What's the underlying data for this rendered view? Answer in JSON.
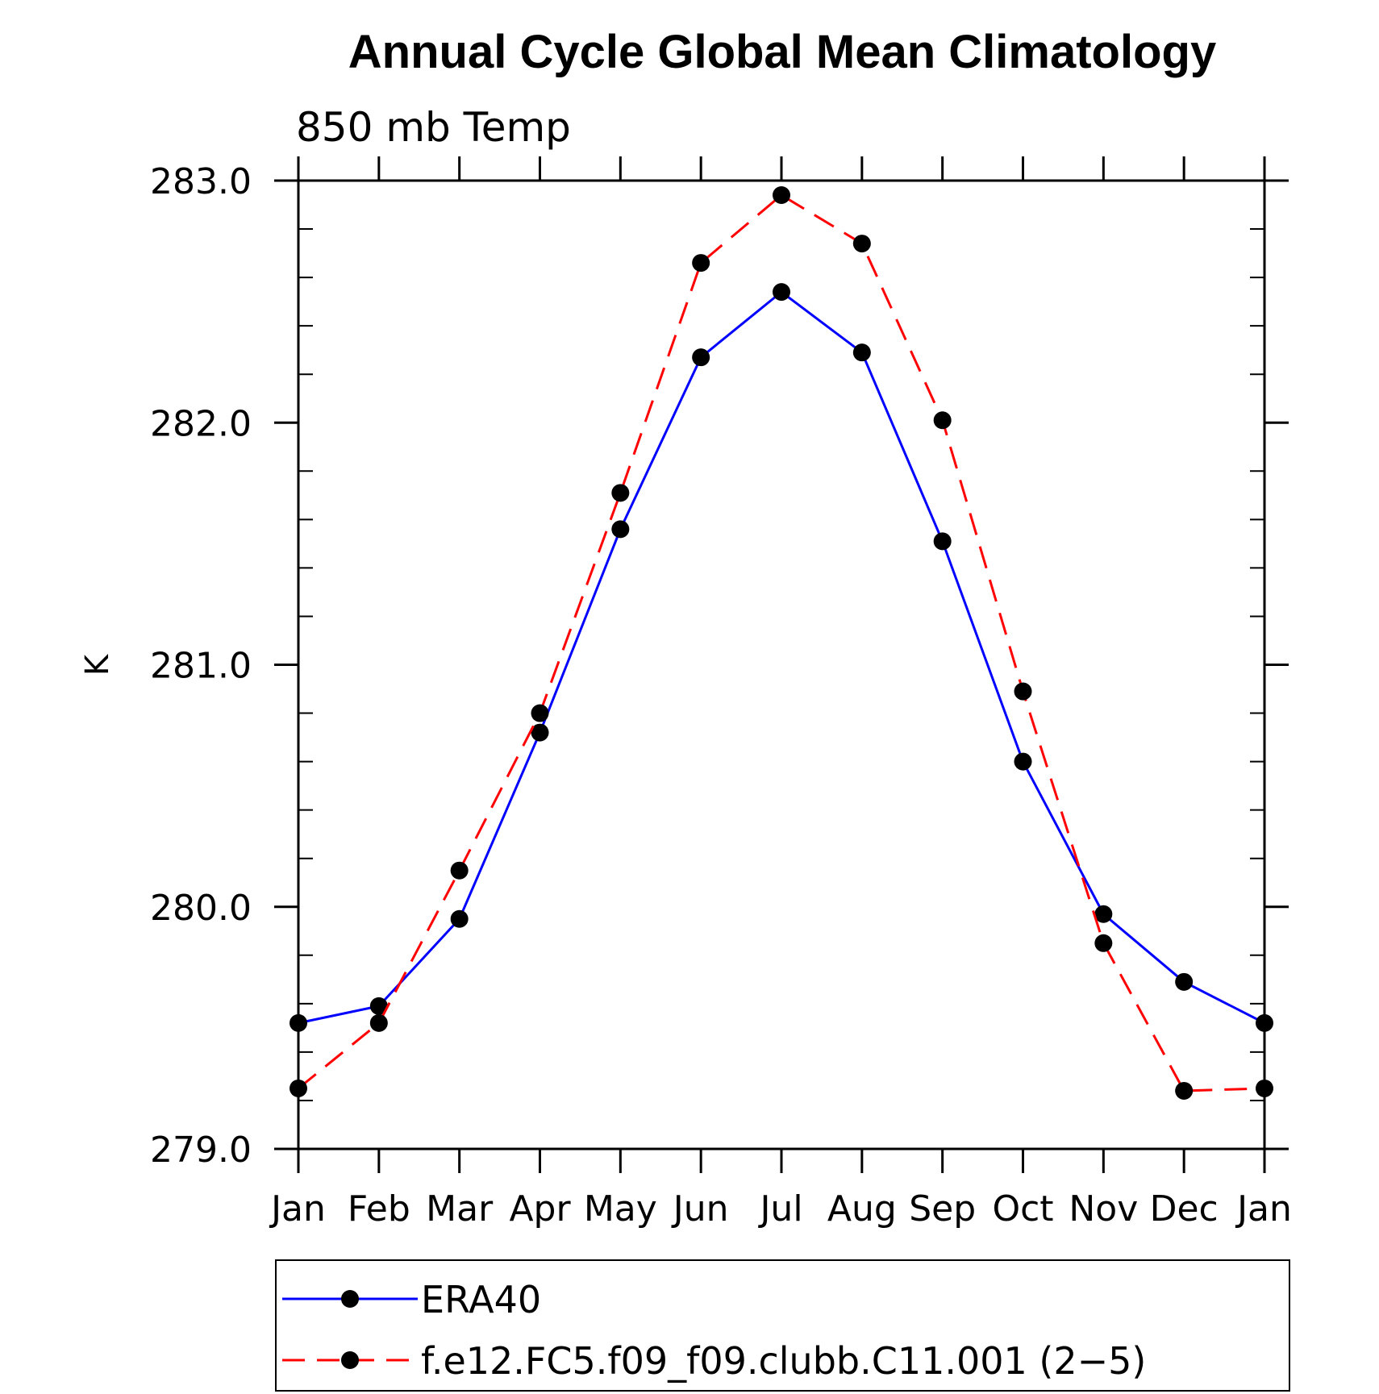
{
  "chart_data": {
    "type": "line",
    "title": "Annual Cycle Global Mean Climatology",
    "subtitle": "850 mb Temp",
    "xlabel": "",
    "ylabel": "K",
    "categories": [
      "Jan",
      "Feb",
      "Mar",
      "Apr",
      "May",
      "Jun",
      "Jul",
      "Aug",
      "Sep",
      "Oct",
      "Nov",
      "Dec",
      "Jan"
    ],
    "ylim": [
      279.0,
      283.0
    ],
    "yticks": [
      279.0,
      280.0,
      281.0,
      282.0,
      283.0
    ],
    "ytick_labels": [
      "279.0",
      "280.0",
      "281.0",
      "282.0",
      "283.0"
    ],
    "y_minor_step": 0.2,
    "grid": false,
    "legend_position": "bottom",
    "series": [
      {
        "name": "ERA40",
        "color": "#0000ff",
        "line_style": "solid",
        "marker": "filled-circle",
        "values": [
          279.52,
          279.59,
          279.95,
          280.72,
          281.56,
          282.27,
          282.54,
          282.29,
          281.51,
          280.6,
          279.97,
          279.69,
          279.52
        ]
      },
      {
        "name": "f.e12.FC5.f09_f09.clubb.C11.001 (2−5)",
        "color": "#ff0000",
        "line_style": "dashed",
        "marker": "filled-circle",
        "values": [
          279.25,
          279.52,
          280.15,
          280.8,
          281.71,
          282.66,
          282.94,
          282.74,
          282.01,
          280.89,
          279.85,
          279.24,
          279.25
        ]
      }
    ]
  }
}
